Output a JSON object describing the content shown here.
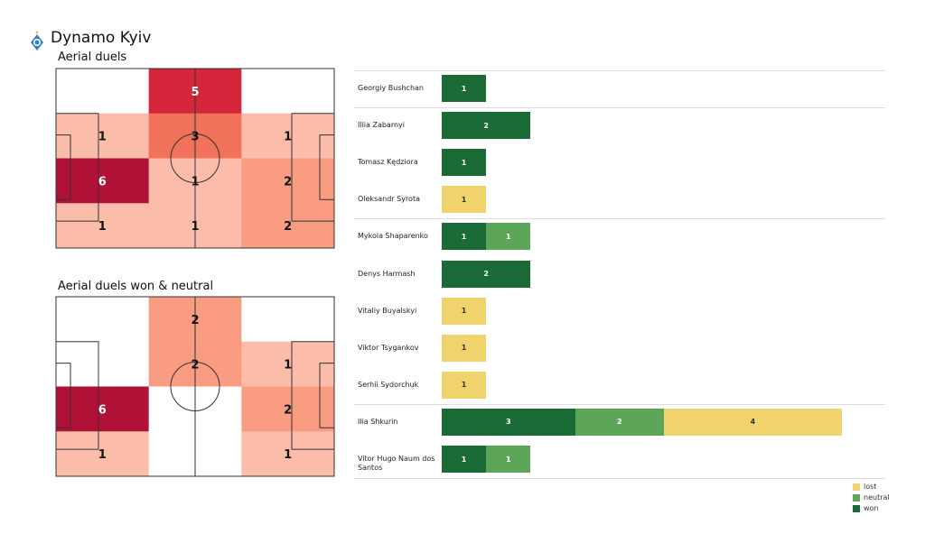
{
  "header": {
    "team": "Dynamo Kyiv",
    "logo_icon": "dynamo-kyiv-crest"
  },
  "chart_data": [
    {
      "type": "heatmap",
      "title": "Aerial duels",
      "grid": [
        [
          0,
          5,
          0
        ],
        [
          1,
          3,
          1
        ],
        [
          6,
          1,
          2
        ],
        [
          1,
          1,
          2
        ]
      ]
    },
    {
      "type": "heatmap",
      "title": "Aerial duels won & neutral",
      "grid": [
        [
          0,
          2,
          0
        ],
        [
          0,
          2,
          1
        ],
        [
          6,
          0,
          2
        ],
        [
          1,
          0,
          1
        ]
      ]
    },
    {
      "type": "bar",
      "stacked": true,
      "orientation": "horizontal",
      "categories": [
        "Georgiy Bushchan",
        "Illia Zabarnyi",
        "Tomasz Kędziora",
        "Oleksandr Syrota",
        "Mykola Shaparenko",
        "Denys Harmash",
        "Vitaliy Buyalskyi",
        "Viktor Tsygankov",
        "Serhii Sydorchuk",
        "Ilia Shkurin",
        "Vitor Hugo Naum dos Santos"
      ],
      "series": [
        {
          "name": "won",
          "color": "#1b6b37",
          "values": [
            1,
            2,
            1,
            0,
            1,
            2,
            0,
            0,
            0,
            3,
            1
          ]
        },
        {
          "name": "neutral",
          "color": "#5da659",
          "values": [
            0,
            0,
            0,
            0,
            1,
            0,
            0,
            0,
            0,
            2,
            1
          ]
        },
        {
          "name": "lost",
          "color": "#f0d36d",
          "values": [
            0,
            0,
            0,
            1,
            0,
            0,
            1,
            1,
            1,
            4,
            0
          ]
        }
      ],
      "legend": {
        "position": "bottom-right",
        "entries": [
          "lost",
          "neutral",
          "won"
        ]
      }
    }
  ]
}
